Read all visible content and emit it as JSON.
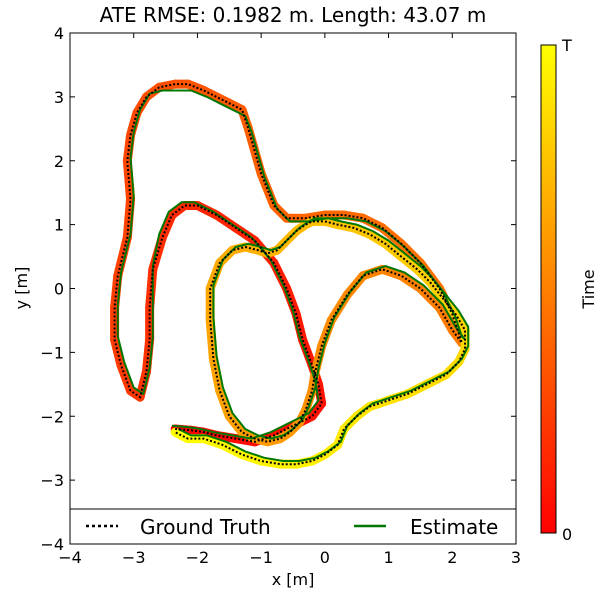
{
  "chart_data": {
    "type": "line",
    "title": "ATE RMSE: 0.1982 m.  Length: 43.07 m",
    "xlabel": "x [m]",
    "ylabel": "y [m]",
    "xlim": [
      -4,
      3
    ],
    "ylim": [
      -4,
      4
    ],
    "xticks": [
      -4,
      -3,
      -2,
      -1,
      0,
      1,
      2,
      3
    ],
    "yticks": [
      -4,
      -3,
      -2,
      -1,
      0,
      1,
      2,
      3,
      4
    ],
    "grid": false,
    "legend": {
      "placement": "bottom",
      "ncol": 2
    },
    "colorbar": {
      "label": "Time",
      "top_label": "T",
      "bottom_label": "0",
      "colormap": "autumn"
    },
    "colors": {
      "ground_truth": "#000000",
      "estimate": "#007700",
      "cmap_start": "#ff0000",
      "cmap_end": "#ffff00"
    },
    "series": [
      {
        "name": "Ground Truth",
        "style": "dotted",
        "x": [
          -2.35,
          -2.1,
          -1.9,
          -1.7,
          -1.4,
          -1.1,
          -0.8,
          -0.5,
          -0.2,
          -0.05,
          -0.1,
          -0.2,
          -0.35,
          -0.45,
          -0.6,
          -0.8,
          -1.1,
          -1.4,
          -1.7,
          -2.0,
          -2.2,
          -2.4,
          -2.55,
          -2.7,
          -2.75,
          -2.75,
          -2.8,
          -2.9,
          -3.05,
          -3.2,
          -3.3,
          -3.3,
          -3.25,
          -3.1,
          -3.05,
          -3.1,
          -3.05,
          -2.95,
          -2.8,
          -2.6,
          -2.35,
          -2.15,
          -1.9,
          -1.7,
          -1.5,
          -1.3,
          -1.2,
          -1.0,
          -0.8,
          -0.6,
          -0.3,
          0.0,
          0.3,
          0.6,
          0.9,
          1.2,
          1.5,
          1.8,
          2.0,
          2.1,
          2.15,
          2.0,
          1.8,
          1.5,
          1.2,
          0.9,
          0.6,
          0.35,
          0.1,
          -0.05,
          -0.15,
          -0.2,
          -0.3,
          -0.4,
          -0.55,
          -0.7,
          -0.9,
          -1.1,
          -1.3,
          -1.5,
          -1.65,
          -1.75,
          -1.8,
          -1.8,
          -1.65,
          -1.45,
          -1.25,
          -1.05,
          -0.9,
          -0.75,
          -0.6,
          -0.45,
          -0.3,
          -0.2,
          -0.1,
          0.0,
          0.2,
          0.45,
          0.7,
          0.95,
          1.2,
          1.45,
          1.65,
          1.85,
          2.05,
          2.2,
          2.2,
          2.1,
          1.9,
          1.6,
          1.3,
          1.0,
          0.7,
          0.5,
          0.3,
          0.2,
          0.0,
          -0.2,
          -0.45,
          -0.7,
          -1.0,
          -1.3,
          -1.6,
          -1.9,
          -2.15,
          -2.35
        ],
        "y": [
          -2.2,
          -2.22,
          -2.25,
          -2.3,
          -2.35,
          -2.4,
          -2.3,
          -2.15,
          -2.0,
          -1.8,
          -1.5,
          -1.2,
          -0.8,
          -0.4,
          0.0,
          0.4,
          0.75,
          0.95,
          1.15,
          1.3,
          1.3,
          1.15,
          0.8,
          0.3,
          -0.3,
          -0.8,
          -1.3,
          -1.7,
          -1.6,
          -1.2,
          -0.8,
          -0.3,
          0.2,
          0.8,
          1.4,
          2.0,
          2.4,
          2.75,
          3.0,
          3.15,
          3.2,
          3.2,
          3.1,
          3.0,
          2.9,
          2.8,
          2.5,
          1.8,
          1.3,
          1.1,
          1.1,
          1.15,
          1.15,
          1.1,
          0.95,
          0.7,
          0.4,
          0.0,
          -0.4,
          -0.7,
          -0.85,
          -0.65,
          -0.3,
          0.0,
          0.2,
          0.3,
          0.2,
          -0.1,
          -0.5,
          -0.9,
          -1.3,
          -1.6,
          -1.9,
          -2.1,
          -2.25,
          -2.35,
          -2.4,
          -2.35,
          -2.25,
          -2.0,
          -1.6,
          -1.1,
          -0.5,
          0.0,
          0.4,
          0.6,
          0.65,
          0.6,
          0.55,
          0.6,
          0.75,
          0.9,
          1.0,
          1.05,
          1.05,
          1.05,
          1.0,
          0.95,
          0.85,
          0.7,
          0.5,
          0.3,
          0.1,
          -0.15,
          -0.4,
          -0.65,
          -0.95,
          -1.15,
          -1.35,
          -1.5,
          -1.65,
          -1.75,
          -1.85,
          -2.0,
          -2.2,
          -2.45,
          -2.6,
          -2.7,
          -2.75,
          -2.75,
          -2.7,
          -2.6,
          -2.45,
          -2.35,
          -2.35,
          -2.25
        ]
      },
      {
        "name": "Estimate",
        "style": "solid",
        "x": [
          -2.4,
          -2.15,
          -1.95,
          -1.75,
          -1.45,
          -1.15,
          -0.85,
          -0.55,
          -0.25,
          -0.1,
          -0.15,
          -0.25,
          -0.4,
          -0.5,
          -0.65,
          -0.85,
          -1.15,
          -1.45,
          -1.75,
          -2.05,
          -2.25,
          -2.45,
          -2.6,
          -2.7,
          -2.7,
          -2.7,
          -2.75,
          -2.85,
          -3.0,
          -3.15,
          -3.25,
          -3.25,
          -3.2,
          -3.05,
          -3.0,
          -3.05,
          -3.0,
          -2.9,
          -2.75,
          -2.55,
          -2.3,
          -2.1,
          -1.85,
          -1.65,
          -1.45,
          -1.25,
          -1.15,
          -0.95,
          -0.75,
          -0.55,
          -0.25,
          0.05,
          0.35,
          0.65,
          0.95,
          1.25,
          1.55,
          1.85,
          2.05,
          2.15,
          2.2,
          2.05,
          1.85,
          1.55,
          1.25,
          0.95,
          0.65,
          0.4,
          0.15,
          0.0,
          -0.1,
          -0.15,
          -0.25,
          -0.35,
          -0.5,
          -0.65,
          -0.85,
          -1.05,
          -1.25,
          -1.45,
          -1.6,
          -1.7,
          -1.75,
          -1.75,
          -1.6,
          -1.4,
          -1.2,
          -1.0,
          -0.85,
          -0.7,
          -0.55,
          -0.4,
          -0.25,
          -0.15,
          -0.05,
          0.05,
          0.25,
          0.5,
          0.75,
          1.0,
          1.25,
          1.5,
          1.7,
          1.9,
          2.1,
          2.25,
          2.25,
          2.15,
          1.95,
          1.65,
          1.35,
          1.05,
          0.75,
          0.55,
          0.35,
          0.25,
          0.05,
          -0.15,
          -0.4,
          -0.65,
          -0.95,
          -1.25,
          -1.55,
          -1.85,
          -2.1,
          -2.3
        ],
        "y": [
          -2.15,
          -2.17,
          -2.2,
          -2.25,
          -2.3,
          -2.35,
          -2.25,
          -2.1,
          -1.95,
          -1.75,
          -1.45,
          -1.15,
          -0.75,
          -0.35,
          0.05,
          0.45,
          0.8,
          1.0,
          1.2,
          1.35,
          1.35,
          1.2,
          0.85,
          0.35,
          -0.25,
          -0.75,
          -1.25,
          -1.65,
          -1.55,
          -1.15,
          -0.75,
          -0.25,
          0.25,
          0.85,
          1.45,
          2.05,
          2.45,
          2.8,
          3.05,
          3.1,
          3.1,
          3.1,
          3.0,
          2.9,
          2.8,
          2.7,
          2.45,
          1.75,
          1.25,
          1.05,
          1.05,
          1.1,
          1.1,
          1.05,
          0.9,
          0.65,
          0.35,
          -0.05,
          -0.45,
          -0.75,
          -0.8,
          -0.6,
          -0.25,
          0.05,
          0.25,
          0.35,
          0.25,
          -0.05,
          -0.45,
          -0.85,
          -1.25,
          -1.55,
          -1.85,
          -2.05,
          -2.2,
          -2.3,
          -2.35,
          -2.3,
          -2.2,
          -1.95,
          -1.55,
          -1.05,
          -0.45,
          0.05,
          0.45,
          0.65,
          0.7,
          0.65,
          0.6,
          0.65,
          0.8,
          0.95,
          1.05,
          1.1,
          1.1,
          1.1,
          1.05,
          1.0,
          0.9,
          0.75,
          0.55,
          0.35,
          0.15,
          -0.1,
          -0.35,
          -0.6,
          -0.9,
          -1.1,
          -1.3,
          -1.45,
          -1.6,
          -1.7,
          -1.8,
          -1.95,
          -2.15,
          -2.4,
          -2.55,
          -2.65,
          -2.7,
          -2.7,
          -2.65,
          -2.55,
          -2.4,
          -2.3,
          -2.3,
          -2.2
        ]
      }
    ]
  }
}
